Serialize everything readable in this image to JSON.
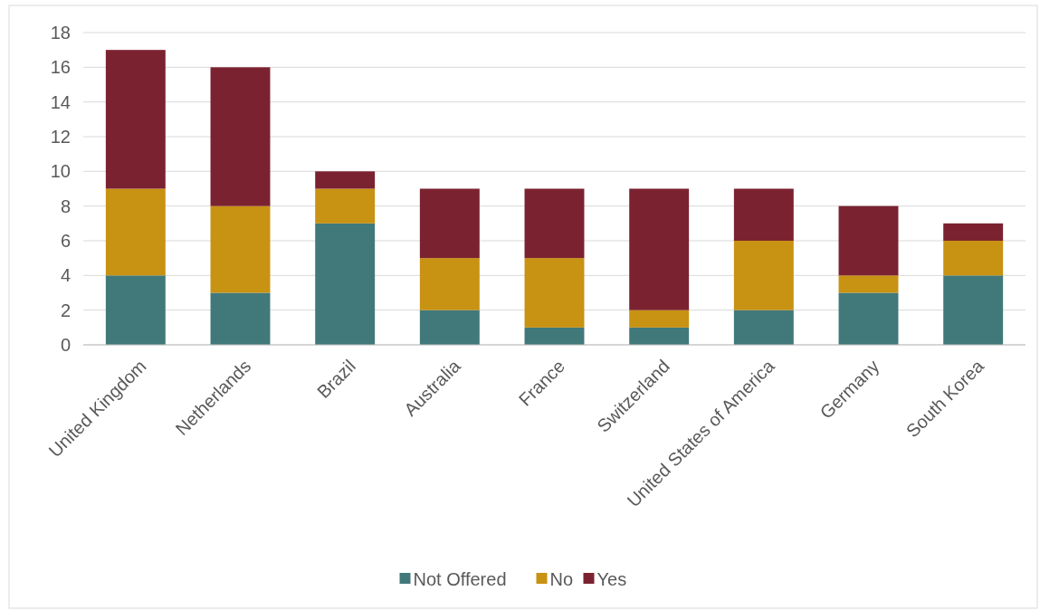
{
  "chart_data": {
    "type": "bar",
    "stacked": true,
    "categories": [
      "United Kingdom",
      "Netherlands",
      "Brazil",
      "Australia",
      "France",
      "Switzerland",
      "United States of America",
      "Germany",
      "South Korea"
    ],
    "series": [
      {
        "name": "Not Offered",
        "color": "#41797a",
        "values": [
          4,
          3,
          7,
          2,
          1,
          1,
          2,
          3,
          4
        ]
      },
      {
        "name": "No",
        "color": "#c89212",
        "values": [
          5,
          5,
          2,
          3,
          4,
          1,
          4,
          1,
          2
        ]
      },
      {
        "name": "Yes",
        "color": "#7b2230",
        "values": [
          8,
          8,
          1,
          4,
          4,
          7,
          3,
          4,
          1
        ]
      }
    ],
    "ylim": [
      0,
      18
    ],
    "yticks": [
      0,
      2,
      4,
      6,
      8,
      10,
      12,
      14,
      16,
      18
    ],
    "grid": "y",
    "legend": "bottom"
  }
}
